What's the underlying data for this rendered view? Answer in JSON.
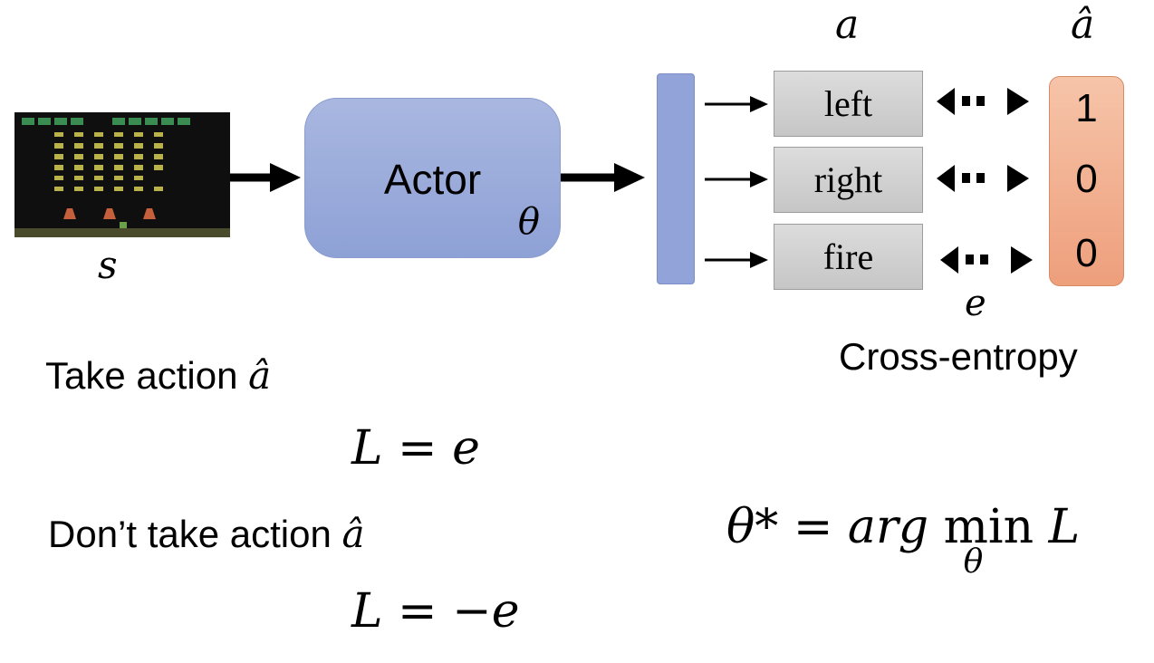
{
  "state_label": "s",
  "actor": {
    "label": "Actor",
    "param": "θ"
  },
  "output_label": "a",
  "actions": [
    "left",
    "right",
    "fire"
  ],
  "target_label": "â",
  "target_values": [
    "1",
    "0",
    "0"
  ],
  "error_label": "e",
  "loss_name": "Cross-entropy",
  "case_take": {
    "text": "Take action",
    "symbol": "â",
    "loss": "L = e"
  },
  "case_dont": {
    "text": "Don’t take action",
    "symbol": "â",
    "loss": "L = −e"
  },
  "objective": {
    "lhs": "θ* = arg",
    "op": "min",
    "sub": "θ",
    "rhs": "L"
  }
}
